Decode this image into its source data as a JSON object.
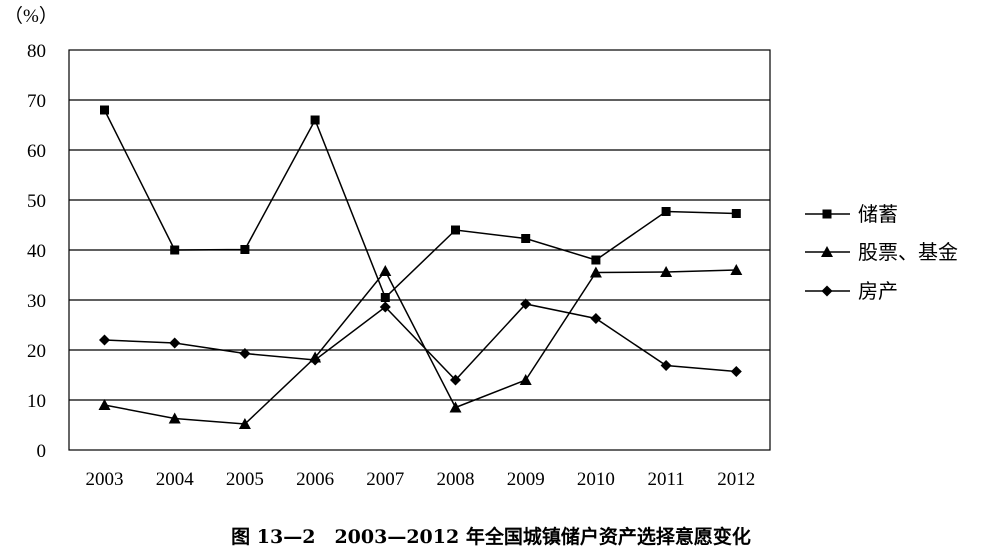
{
  "chart_data": {
    "type": "line",
    "unit_label": "（%）",
    "caption": "图 13—2　2003—2012 年全国城镇储户资产选择意愿变化",
    "categories": [
      "2003",
      "2004",
      "2005",
      "2006",
      "2007",
      "2008",
      "2009",
      "2010",
      "2011",
      "2012"
    ],
    "ylim": [
      0,
      80
    ],
    "yticks": [
      0,
      10,
      20,
      30,
      40,
      50,
      60,
      70,
      80
    ],
    "grid": true,
    "legend_position": "right",
    "series": [
      {
        "name": "储蓄",
        "marker": "square",
        "values": [
          68.0,
          40.0,
          40.1,
          66.0,
          30.5,
          44.0,
          42.3,
          38.0,
          47.7,
          47.3
        ]
      },
      {
        "name": "股票、基金",
        "marker": "triangle",
        "values": [
          9.0,
          6.3,
          5.2,
          18.5,
          35.8,
          8.5,
          14.0,
          35.5,
          35.6,
          36.0
        ]
      },
      {
        "name": "房产",
        "marker": "diamond",
        "values": [
          22.0,
          21.4,
          19.3,
          18.0,
          28.6,
          14.0,
          29.2,
          26.3,
          16.9,
          15.7
        ]
      }
    ]
  }
}
